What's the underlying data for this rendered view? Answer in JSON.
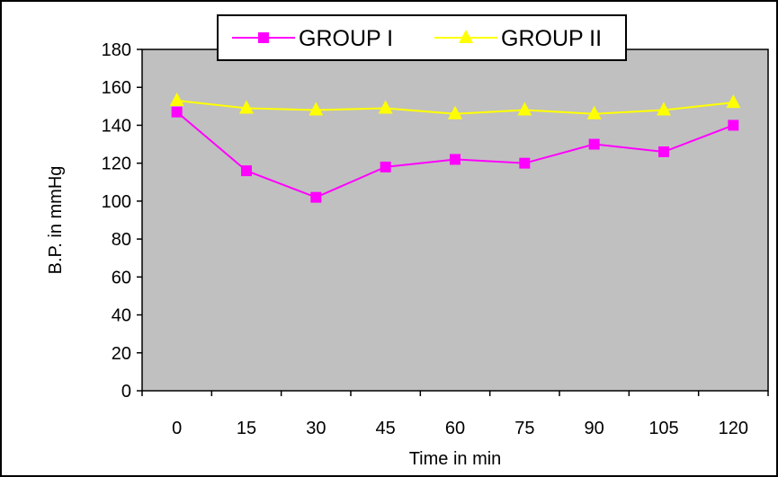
{
  "chart_data": {
    "type": "line",
    "title": "",
    "xlabel": "Time in min",
    "ylabel": "B.P. in mmHg",
    "categories": [
      "0",
      "15",
      "30",
      "45",
      "60",
      "75",
      "90",
      "105",
      "120"
    ],
    "ylim": [
      0,
      180
    ],
    "ytick_step": 20,
    "grid": false,
    "legend_position": "top-center",
    "plot_background": "#c0c0c0",
    "series": [
      {
        "name": "GROUP I",
        "color": "#ff00ff",
        "marker": "square",
        "values": [
          147,
          116,
          102,
          118,
          122,
          120,
          130,
          126,
          140
        ]
      },
      {
        "name": "GROUP II",
        "color": "#ffff00",
        "marker": "triangle",
        "values": [
          153,
          149,
          148,
          149,
          146,
          148,
          146,
          148,
          152
        ]
      }
    ]
  }
}
